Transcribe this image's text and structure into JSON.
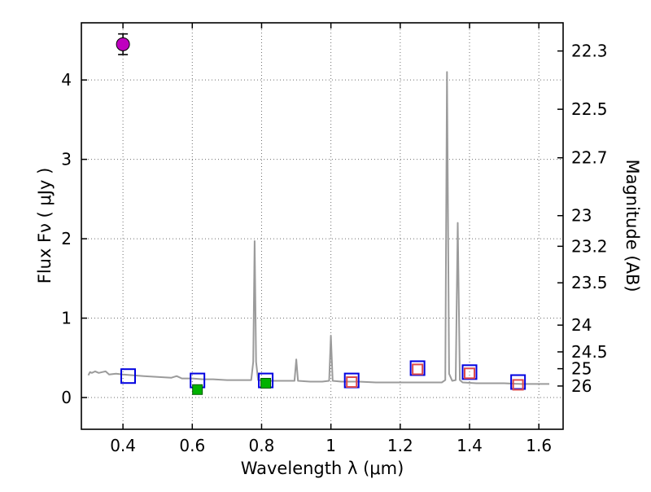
{
  "chart_data": {
    "type": "line",
    "title": "",
    "xlabel": "Wavelength  λ (μm)",
    "ylabel_left": "Flux  Fν  ( μJy )",
    "ylabel_right": "Magnitude (AB)",
    "xlim": [
      0.28,
      1.67
    ],
    "ylim": [
      -0.4,
      4.72
    ],
    "grid": "dotted",
    "grid_color": "#6e6e6e",
    "frame_color": "#000000",
    "x_ticks": {
      "values": [
        0.4,
        0.6,
        0.8,
        1.0,
        1.2,
        1.4,
        1.6
      ],
      "labels": [
        "0.4",
        "0.6",
        "0.8",
        "1",
        "1.2",
        "1.4",
        "1.6"
      ]
    },
    "y_ticks_left": {
      "values": [
        0,
        1,
        2,
        3,
        4
      ],
      "labels": [
        "0",
        "1",
        "2",
        "3",
        "4"
      ]
    },
    "y_ticks_right": [
      {
        "label": "22.3",
        "flux": 4.365
      },
      {
        "label": "22.5",
        "flux": 3.631
      },
      {
        "label": "22.7",
        "flux": 3.02
      },
      {
        "label": "23",
        "flux": 2.291
      },
      {
        "label": "23.2",
        "flux": 1.905
      },
      {
        "label": "23.5",
        "flux": 1.445
      },
      {
        "label": "24",
        "flux": 0.912
      },
      {
        "label": "24.5",
        "flux": 0.575
      },
      {
        "label": "25",
        "flux": 0.363
      },
      {
        "label": "26",
        "flux": 0.145
      }
    ],
    "spectrum": {
      "name": "model-spectrum-line",
      "color": "#9b9b9b",
      "points": [
        [
          0.3,
          0.28
        ],
        [
          0.305,
          0.32
        ],
        [
          0.31,
          0.31
        ],
        [
          0.32,
          0.33
        ],
        [
          0.33,
          0.31
        ],
        [
          0.34,
          0.32
        ],
        [
          0.35,
          0.33
        ],
        [
          0.36,
          0.29
        ],
        [
          0.38,
          0.3
        ],
        [
          0.4,
          0.29
        ],
        [
          0.43,
          0.28
        ],
        [
          0.46,
          0.27
        ],
        [
          0.5,
          0.26
        ],
        [
          0.54,
          0.25
        ],
        [
          0.555,
          0.27
        ],
        [
          0.57,
          0.24
        ],
        [
          0.6,
          0.24
        ],
        [
          0.63,
          0.23
        ],
        [
          0.66,
          0.23
        ],
        [
          0.7,
          0.22
        ],
        [
          0.74,
          0.22
        ],
        [
          0.77,
          0.22
        ],
        [
          0.776,
          0.45
        ],
        [
          0.78,
          1.97
        ],
        [
          0.784,
          0.45
        ],
        [
          0.79,
          0.22
        ],
        [
          0.82,
          0.21
        ],
        [
          0.86,
          0.21
        ],
        [
          0.895,
          0.21
        ],
        [
          0.9,
          0.48
        ],
        [
          0.905,
          0.21
        ],
        [
          0.94,
          0.2
        ],
        [
          0.975,
          0.2
        ],
        [
          0.995,
          0.21
        ],
        [
          1.0,
          0.78
        ],
        [
          1.005,
          0.21
        ],
        [
          1.03,
          0.2
        ],
        [
          1.08,
          0.2
        ],
        [
          1.13,
          0.19
        ],
        [
          1.18,
          0.19
        ],
        [
          1.23,
          0.19
        ],
        [
          1.28,
          0.19
        ],
        [
          1.32,
          0.19
        ],
        [
          1.33,
          0.22
        ],
        [
          1.335,
          4.1
        ],
        [
          1.341,
          0.3
        ],
        [
          1.35,
          0.21
        ],
        [
          1.36,
          0.22
        ],
        [
          1.366,
          2.2
        ],
        [
          1.372,
          0.22
        ],
        [
          1.38,
          0.19
        ],
        [
          1.42,
          0.18
        ],
        [
          1.46,
          0.18
        ],
        [
          1.5,
          0.18
        ],
        [
          1.55,
          0.17
        ],
        [
          1.6,
          0.17
        ],
        [
          1.63,
          0.17
        ]
      ]
    },
    "series": [
      {
        "name": "magenta-circle-point",
        "marker": "circle",
        "fill": "#bf00bf",
        "edge": "#000000",
        "size": 16,
        "points": [
          {
            "x": 0.4,
            "y": 4.45,
            "yerr": 0.13
          }
        ]
      },
      {
        "name": "blue-open-square",
        "marker": "square-open",
        "edge": "#0000e0",
        "size": 17,
        "points": [
          {
            "x": 0.415,
            "y": 0.27
          },
          {
            "x": 0.615,
            "y": 0.215
          },
          {
            "x": 0.812,
            "y": 0.215
          },
          {
            "x": 1.06,
            "y": 0.215
          },
          {
            "x": 1.25,
            "y": 0.37
          },
          {
            "x": 1.4,
            "y": 0.32
          },
          {
            "x": 1.54,
            "y": 0.195
          }
        ]
      },
      {
        "name": "green-filled-square",
        "marker": "square-fill",
        "fill": "#00b200",
        "edge": "#005a00",
        "size": 12,
        "points": [
          {
            "x": 0.615,
            "y": 0.1,
            "yerr": 0.035
          },
          {
            "x": 0.812,
            "y": 0.18,
            "yerr": 0.03
          }
        ]
      },
      {
        "name": "red-open-square",
        "marker": "square-open",
        "edge": "#dd4b4b",
        "size": 12,
        "points": [
          {
            "x": 1.06,
            "y": 0.195
          },
          {
            "x": 1.25,
            "y": 0.355
          },
          {
            "x": 1.4,
            "y": 0.305
          },
          {
            "x": 1.54,
            "y": 0.16
          }
        ]
      }
    ]
  }
}
